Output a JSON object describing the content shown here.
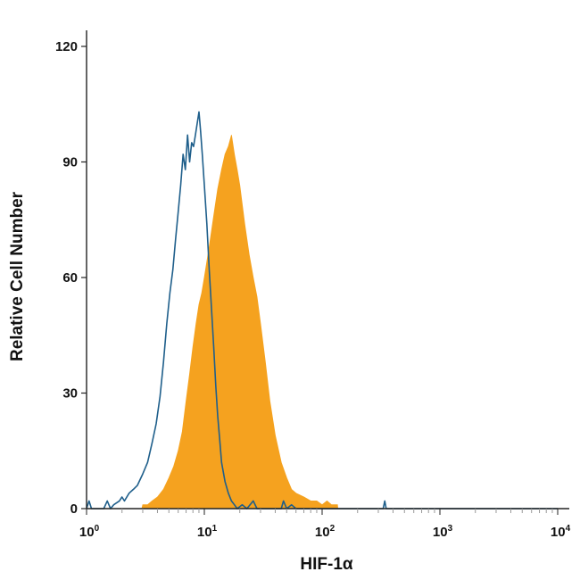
{
  "chart_data": {
    "type": "area",
    "xlabel": "HIF-1α",
    "ylabel": "Relative Cell Number",
    "x_scale": "log",
    "xlim": [
      1,
      10000
    ],
    "ylim": [
      0,
      125
    ],
    "x_ticks": [
      {
        "value": 1,
        "base": "10",
        "exp": "0"
      },
      {
        "value": 10,
        "base": "10",
        "exp": "1"
      },
      {
        "value": 100,
        "base": "10",
        "exp": "2"
      },
      {
        "value": 1000,
        "base": "10",
        "exp": "3"
      },
      {
        "value": 10000,
        "base": "10",
        "exp": "4"
      }
    ],
    "y_ticks": [
      {
        "value": 0,
        "label": "0"
      },
      {
        "value": 30,
        "label": "30"
      },
      {
        "value": 60,
        "label": "60"
      },
      {
        "value": 90,
        "label": "90"
      },
      {
        "value": 120,
        "label": "120"
      }
    ],
    "grid": false,
    "series": [
      {
        "style": "filled",
        "color": "#f5a21f",
        "points": [
          [
            2.95,
            0
          ],
          [
            3.0,
            1
          ],
          [
            3.3,
            1
          ],
          [
            3.6,
            2
          ],
          [
            4.0,
            3
          ],
          [
            4.5,
            5
          ],
          [
            5.0,
            8
          ],
          [
            5.5,
            11
          ],
          [
            6.0,
            15
          ],
          [
            6.5,
            20
          ],
          [
            7.0,
            28
          ],
          [
            7.5,
            35
          ],
          [
            8.0,
            42
          ],
          [
            8.5,
            48
          ],
          [
            9.0,
            53
          ],
          [
            9.5,
            56
          ],
          [
            10.0,
            60
          ],
          [
            11.0,
            68
          ],
          [
            12.0,
            76
          ],
          [
            13.0,
            83
          ],
          [
            14.0,
            88
          ],
          [
            15.0,
            92
          ],
          [
            16.0,
            94
          ],
          [
            17.0,
            97
          ],
          [
            18.0,
            92
          ],
          [
            19.0,
            88
          ],
          [
            20.0,
            84
          ],
          [
            22.0,
            74
          ],
          [
            24.0,
            66
          ],
          [
            26.0,
            60
          ],
          [
            28.0,
            55
          ],
          [
            30.0,
            48
          ],
          [
            33.0,
            38
          ],
          [
            36.0,
            28
          ],
          [
            40.0,
            19
          ],
          [
            45.0,
            12
          ],
          [
            50.0,
            8
          ],
          [
            55.0,
            5
          ],
          [
            60.0,
            4
          ],
          [
            70.0,
            3
          ],
          [
            80.0,
            2
          ],
          [
            90.0,
            2
          ],
          [
            100.0,
            1
          ],
          [
            110.0,
            2
          ],
          [
            120.0,
            1
          ],
          [
            135.0,
            1
          ],
          [
            136.0,
            0
          ]
        ]
      },
      {
        "style": "outline",
        "color": "#1f5f8b",
        "points": [
          [
            1.0,
            0
          ],
          [
            1.05,
            2
          ],
          [
            1.1,
            0
          ],
          [
            1.4,
            0
          ],
          [
            1.5,
            2
          ],
          [
            1.6,
            0
          ],
          [
            1.7,
            1
          ],
          [
            1.9,
            2
          ],
          [
            2.0,
            3
          ],
          [
            2.1,
            2
          ],
          [
            2.3,
            4
          ],
          [
            2.5,
            5
          ],
          [
            2.7,
            6
          ],
          [
            3.0,
            9
          ],
          [
            3.3,
            12
          ],
          [
            3.6,
            17
          ],
          [
            3.9,
            22
          ],
          [
            4.2,
            29
          ],
          [
            4.5,
            38
          ],
          [
            4.8,
            48
          ],
          [
            5.1,
            56
          ],
          [
            5.4,
            62
          ],
          [
            5.7,
            70
          ],
          [
            6.0,
            77
          ],
          [
            6.3,
            84
          ],
          [
            6.6,
            92
          ],
          [
            6.9,
            88
          ],
          [
            7.2,
            97
          ],
          [
            7.5,
            90
          ],
          [
            7.8,
            95
          ],
          [
            8.1,
            94
          ],
          [
            8.4,
            97
          ],
          [
            8.7,
            100
          ],
          [
            9.0,
            103
          ],
          [
            9.3,
            98
          ],
          [
            9.6,
            92
          ],
          [
            10.0,
            84
          ],
          [
            10.5,
            74
          ],
          [
            11.0,
            62
          ],
          [
            11.5,
            52
          ],
          [
            12.0,
            42
          ],
          [
            12.5,
            32
          ],
          [
            13.0,
            24
          ],
          [
            13.5,
            18
          ],
          [
            14.0,
            12
          ],
          [
            15.0,
            7
          ],
          [
            16.0,
            4
          ],
          [
            17.0,
            2
          ],
          [
            18.0,
            1
          ],
          [
            19.0,
            0
          ],
          [
            21.0,
            1
          ],
          [
            23.0,
            0
          ],
          [
            26.0,
            2
          ],
          [
            28.0,
            0
          ],
          [
            45.0,
            0
          ],
          [
            47.0,
            2
          ],
          [
            50.0,
            0
          ],
          [
            55.0,
            1
          ],
          [
            60.0,
            0
          ],
          [
            330.0,
            0
          ],
          [
            340.0,
            2
          ],
          [
            350.0,
            0
          ],
          [
            10000.0,
            0
          ]
        ]
      }
    ]
  }
}
